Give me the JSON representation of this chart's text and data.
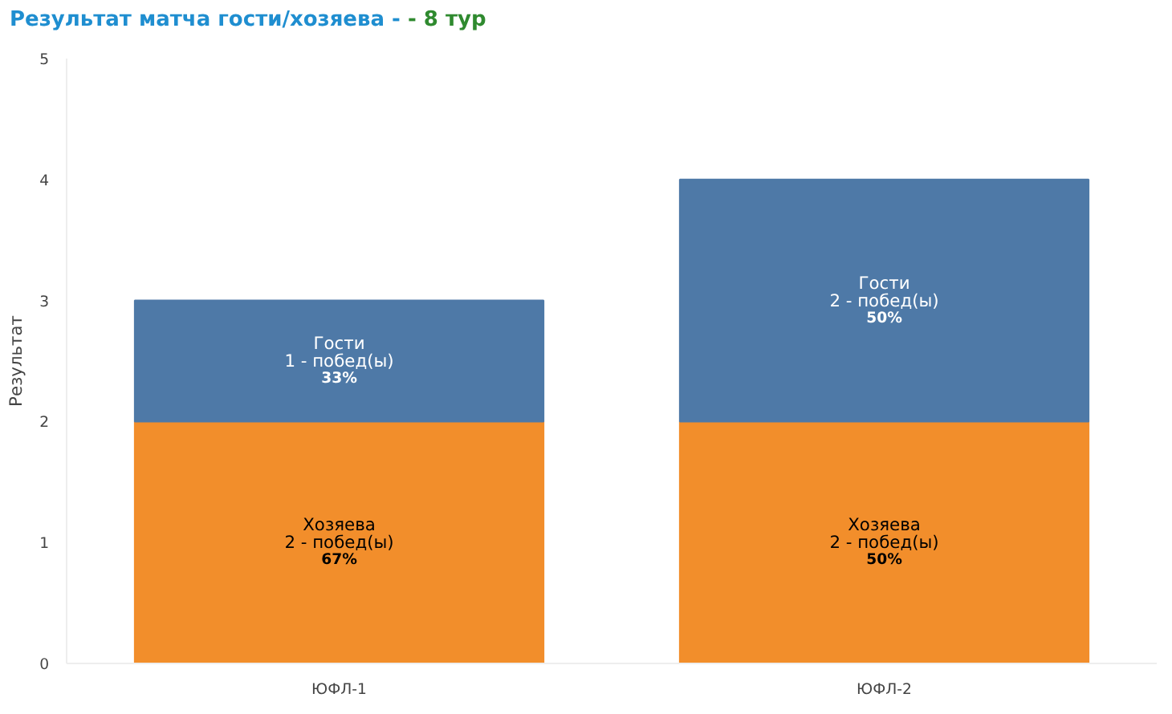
{
  "chart_data": {
    "type": "bar",
    "title": "Результат матча гости/хозяева -",
    "subtitle": "- 8 тур",
    "ylabel": "Результат",
    "categories": [
      "ЮФЛ-1",
      "ЮФЛ-2"
    ],
    "stacked": true,
    "ylim": [
      0,
      5
    ],
    "yticks": [
      0,
      1,
      2,
      3,
      4,
      5
    ],
    "grid": false,
    "legend": false,
    "series": [
      {
        "name": "Хозяева",
        "color": "#f28e2b",
        "values": [
          2,
          2
        ],
        "value_labels": [
          "2 - побед(ы)\n67%",
          "2 - побед(ы)\n50%"
        ]
      },
      {
        "name": "Гости",
        "color": "#4e79a7",
        "values": [
          1,
          2
        ],
        "value_labels": [
          "1 - побед(ы)\n33%",
          "2 - побед(ы)\n50%"
        ]
      }
    ]
  }
}
